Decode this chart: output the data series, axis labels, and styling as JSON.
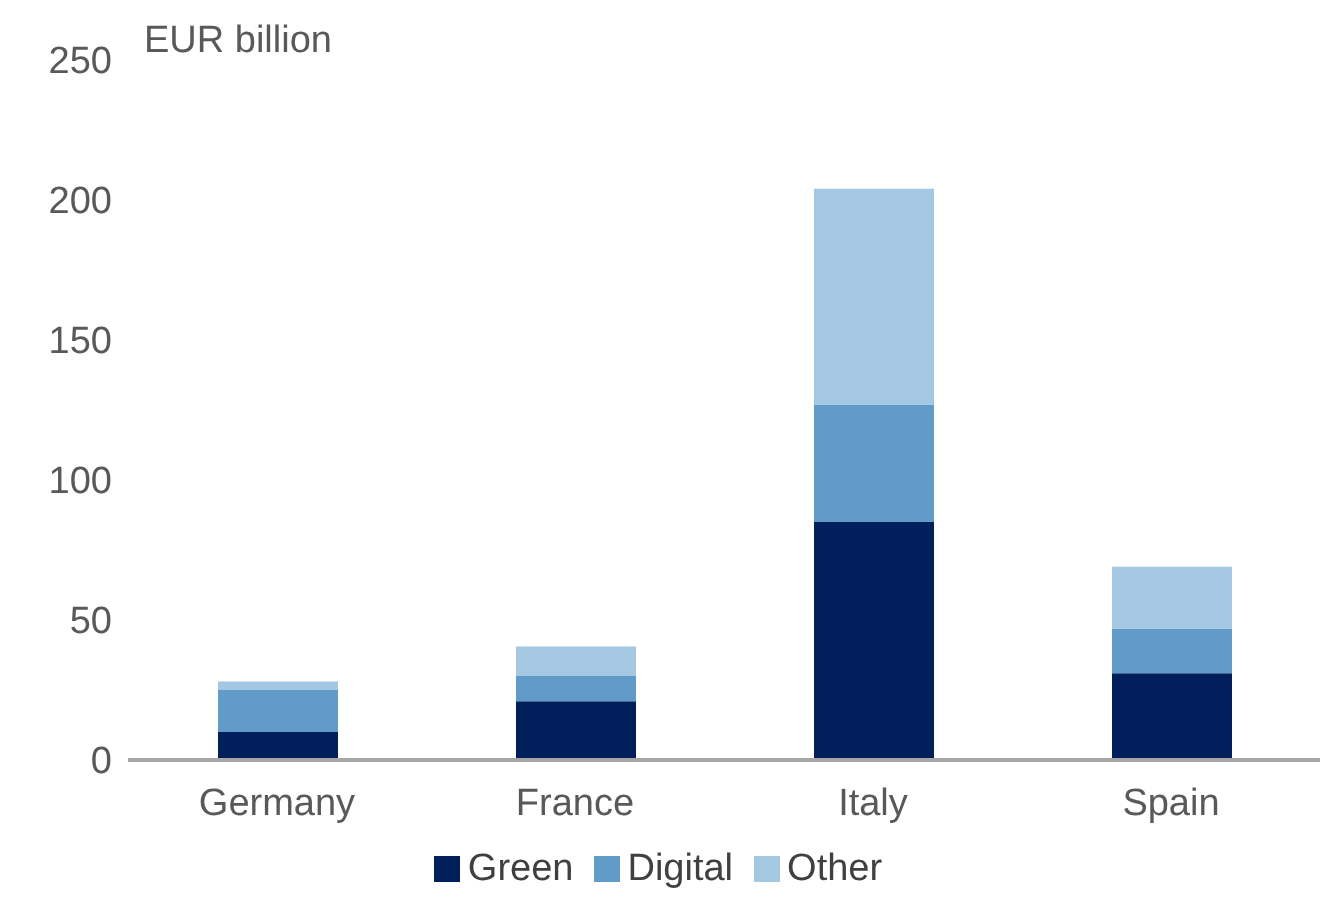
{
  "chart_data": {
    "type": "bar",
    "ylabel": "EUR billion",
    "stacked": true,
    "categories": [
      "Germany",
      "France",
      "Italy",
      "Spain"
    ],
    "series": [
      {
        "name": "Green",
        "color": "#001f5b",
        "values": [
          10,
          21,
          85,
          31
        ]
      },
      {
        "name": "Digital",
        "color": "#619cc8",
        "values": [
          15,
          9,
          42,
          16
        ]
      },
      {
        "name": "Other",
        "color": "#a4c8e1",
        "values": [
          3,
          10.5,
          77,
          22
        ]
      }
    ],
    "ylim": [
      0,
      250
    ],
    "yticks": [
      0,
      50,
      100,
      150,
      200,
      250
    ],
    "grid": false,
    "legend": "bottom"
  }
}
